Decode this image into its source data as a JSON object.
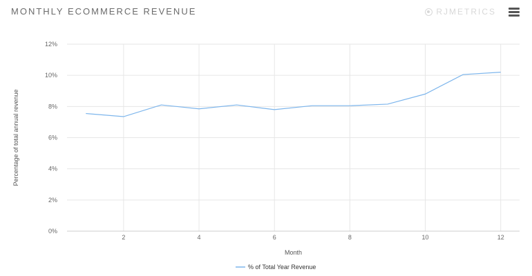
{
  "header": {
    "title": "MONTHLY ECOMMERCE REVENUE",
    "brand_name": "RJMETRICS",
    "brand_icon": "rjmetrics-logo-icon",
    "menu_icon": "hamburger-menu-icon"
  },
  "chart_data": {
    "type": "line",
    "title": "MONTHLY ECOMMERCE REVENUE",
    "xlabel": "Month",
    "ylabel": "Percentage of total annual revenue",
    "xlim": [
      0.5,
      12.5
    ],
    "ylim": [
      0,
      12
    ],
    "xticks": [
      2,
      4,
      6,
      8,
      10,
      12
    ],
    "yticks": [
      0,
      2,
      4,
      6,
      8,
      10,
      12
    ],
    "yticks_labels": [
      "0%",
      "2%",
      "4%",
      "6%",
      "8%",
      "10%",
      "12%"
    ],
    "grid": true,
    "legend_position": "bottom",
    "series": [
      {
        "name": "% of Total Year Revenue",
        "color": "#7cb5ec",
        "x": [
          1,
          2,
          3,
          4,
          5,
          6,
          7,
          8,
          9,
          10,
          11,
          12
        ],
        "values": [
          7.55,
          7.35,
          8.1,
          7.85,
          8.1,
          7.8,
          8.05,
          8.05,
          8.15,
          8.8,
          10.05,
          10.2
        ]
      }
    ]
  }
}
